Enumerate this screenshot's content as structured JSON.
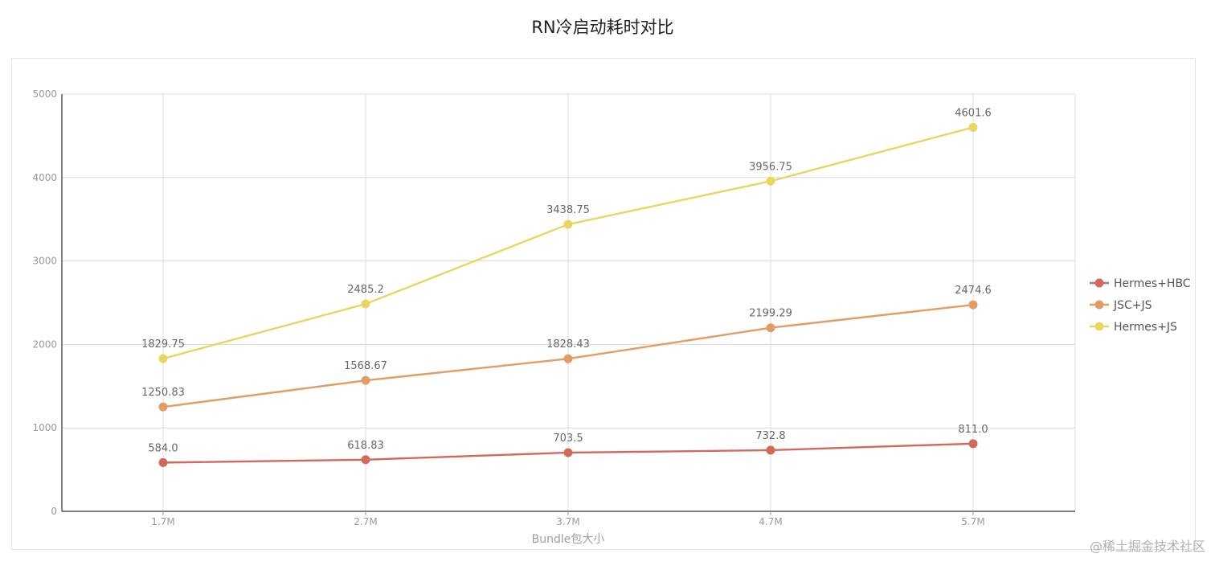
{
  "page": {
    "title": "RN冷启动耗时对比",
    "watermark": "@稀土掘金技术社区"
  },
  "chart_data": {
    "type": "line",
    "title": "RN冷启动耗时对比",
    "xlabel": "Bundle包大小",
    "ylabel": "",
    "categories": [
      "1.7M",
      "2.7M",
      "3.7M",
      "4.7M",
      "5.7M"
    ],
    "ylim": [
      0,
      5000
    ],
    "yticks": [
      0,
      1000,
      2000,
      3000,
      4000,
      5000
    ],
    "grid": true,
    "legend_position": "right",
    "series": [
      {
        "name": "Hermes+HBC",
        "color": "#d26a5c",
        "values": [
          584.0,
          618.83,
          703.5,
          732.8,
          811.0
        ],
        "labels": [
          "584.0",
          "618.83",
          "703.5",
          "732.8",
          "811.0"
        ]
      },
      {
        "name": "JSC+JS",
        "color": "#e39c63",
        "values": [
          1250.83,
          1568.67,
          1828.43,
          2199.29,
          2474.6
        ],
        "labels": [
          "1250.83",
          "1568.67",
          "1828.43",
          "2199.29",
          "2474.6"
        ]
      },
      {
        "name": "Hermes+JS",
        "color": "#e8d663",
        "values": [
          1829.75,
          2485.2,
          3438.75,
          3956.75,
          4601.6
        ],
        "labels": [
          "1829.75",
          "2485.2",
          "3438.75",
          "3956.75",
          "4601.6"
        ]
      }
    ]
  }
}
